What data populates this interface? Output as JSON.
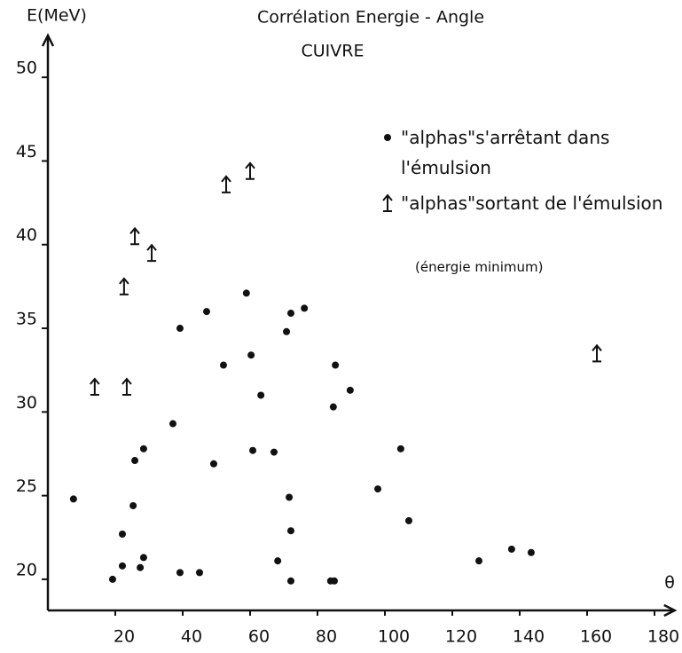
{
  "chart_data": {
    "type": "scatter",
    "title": "Corrélation  Energie - Angle",
    "subtitle": "CUIVRE",
    "y_label": "E(MeV)",
    "x_label": "θ",
    "legend_note": "(énergie minimum)",
    "xlim": [
      0,
      186
    ],
    "ylim": [
      18.14,
      52.5
    ],
    "xticks": [
      20,
      40,
      60,
      80,
      100,
      120,
      140,
      160,
      180
    ],
    "yticks": [
      20,
      25,
      30,
      35,
      40,
      45,
      50
    ],
    "grid": false,
    "series": [
      {
        "name": "\"alphas\"s'arrêtant dans l'émulsion",
        "marker": "dot",
        "color": "#111111",
        "x": [
          7.6,
          19.2,
          22.1,
          22.1,
          25.3,
          25.8,
          27.4,
          28.4,
          28.4,
          37.1,
          39.2,
          39.2,
          45.0,
          47.1,
          49.2,
          52.1,
          58.9,
          60.3,
          60.8,
          63.2,
          67.1,
          68.2,
          70.8,
          71.6,
          72.1,
          72.1,
          72.1,
          76.1,
          83.9,
          85.0,
          85.3,
          84.7,
          89.7,
          97.9,
          104.7,
          107.1,
          127.9,
          137.6,
          143.4
        ],
        "values": [
          24.8,
          20.0,
          20.8,
          22.7,
          24.4,
          27.1,
          20.7,
          21.3,
          27.8,
          29.3,
          20.4,
          35.0,
          20.4,
          36.0,
          26.9,
          32.8,
          37.1,
          33.4,
          27.7,
          31.0,
          27.6,
          21.1,
          34.8,
          24.9,
          22.9,
          19.9,
          35.9,
          36.2,
          19.9,
          19.9,
          32.8,
          30.3,
          31.3,
          25.4,
          27.8,
          23.5,
          21.1,
          21.8,
          21.6
        ]
      },
      {
        "name": "\"alphas\"sortant de l'émulsion",
        "marker": "arrow",
        "color": "#111111",
        "x": [
          13.9,
          23.4,
          22.6,
          25.8,
          30.8,
          52.9,
          60.0,
          162.9
        ],
        "values": [
          31.5,
          31.5,
          37.5,
          40.5,
          39.5,
          43.6,
          44.4,
          33.5
        ]
      }
    ]
  }
}
